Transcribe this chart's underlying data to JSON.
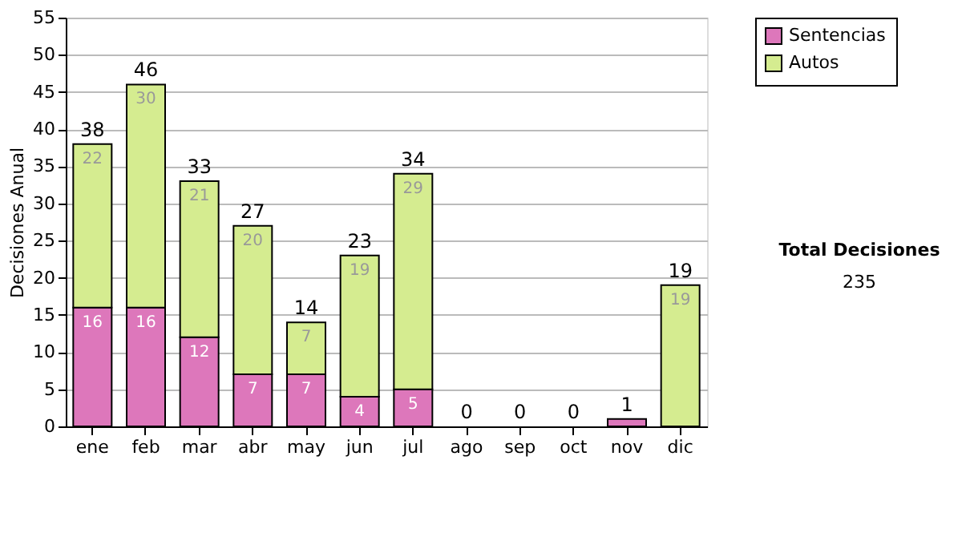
{
  "chart_data": {
    "type": "bar",
    "stacked": true,
    "ylabel": "Decisiones Anual",
    "categories": [
      "ene",
      "feb",
      "mar",
      "abr",
      "may",
      "jun",
      "jul",
      "ago",
      "sep",
      "oct",
      "nov",
      "dic"
    ],
    "series": [
      {
        "name": "Sentencias",
        "color": "#dd77bb",
        "values": [
          16,
          16,
          12,
          7,
          7,
          4,
          5,
          0,
          0,
          0,
          1,
          0
        ],
        "value_labels": [
          "16",
          "16",
          "12",
          "7",
          "7",
          "4",
          "5",
          null,
          null,
          null,
          null,
          null
        ]
      },
      {
        "name": "Autos",
        "color": "#d5ec90",
        "values": [
          22,
          30,
          21,
          20,
          7,
          19,
          29,
          0,
          0,
          0,
          0,
          19
        ],
        "value_labels": [
          "22",
          "30",
          "21",
          "20",
          "7",
          "19",
          "29",
          null,
          null,
          null,
          null,
          "19"
        ]
      }
    ],
    "totals": [
      "38",
      "46",
      "33",
      "27",
      "14",
      "23",
      "34",
      "0",
      "0",
      "0",
      "1",
      "19"
    ],
    "ylim": [
      0,
      55
    ],
    "yticks": [
      0,
      5,
      10,
      15,
      20,
      25,
      30,
      35,
      40,
      45,
      50,
      55
    ],
    "grid": "y",
    "legend": "right",
    "annotations": [
      "Total Decisiones",
      "235"
    ]
  }
}
